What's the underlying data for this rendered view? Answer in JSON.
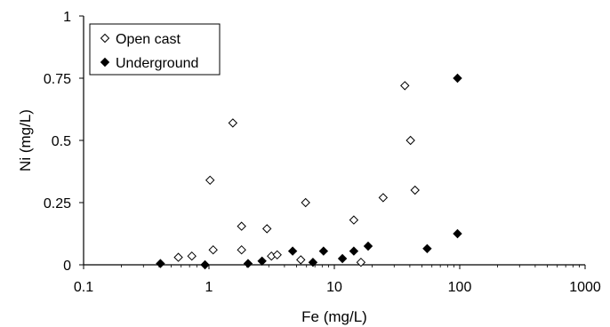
{
  "chart_data": {
    "type": "scatter",
    "title": "",
    "xlabel": "Fe (mg/L)",
    "ylabel": "Ni (mg/L)",
    "x_scale": "log",
    "xlim": [
      0.1,
      1000
    ],
    "ylim": [
      0,
      1
    ],
    "x_ticks": [
      0.1,
      1,
      10,
      100,
      1000
    ],
    "x_tick_labels": [
      "0.1",
      "1",
      "10",
      "100",
      "1000"
    ],
    "y_ticks": [
      0,
      0.25,
      0.5,
      0.75,
      1
    ],
    "y_tick_labels": [
      "0",
      "0.25",
      "0.5",
      "0.75",
      "1"
    ],
    "grid": false,
    "legend_position": "top-left",
    "series": [
      {
        "name": "Open cast",
        "marker": "open-diamond",
        "color": "#000000",
        "points": [
          {
            "x": 0.57,
            "y": 0.03
          },
          {
            "x": 0.73,
            "y": 0.035
          },
          {
            "x": 1.02,
            "y": 0.34
          },
          {
            "x": 1.08,
            "y": 0.06
          },
          {
            "x": 1.55,
            "y": 0.57
          },
          {
            "x": 1.82,
            "y": 0.155
          },
          {
            "x": 1.82,
            "y": 0.06
          },
          {
            "x": 2.9,
            "y": 0.145
          },
          {
            "x": 3.15,
            "y": 0.035
          },
          {
            "x": 3.5,
            "y": 0.04
          },
          {
            "x": 5.4,
            "y": 0.02
          },
          {
            "x": 5.9,
            "y": 0.25
          },
          {
            "x": 14.3,
            "y": 0.18
          },
          {
            "x": 16.3,
            "y": 0.01
          },
          {
            "x": 24.5,
            "y": 0.27
          },
          {
            "x": 36.5,
            "y": 0.72
          },
          {
            "x": 40.5,
            "y": 0.5
          },
          {
            "x": 44.0,
            "y": 0.3
          }
        ]
      },
      {
        "name": "Underground",
        "marker": "filled-diamond",
        "color": "#000000",
        "points": [
          {
            "x": 0.41,
            "y": 0.005
          },
          {
            "x": 0.93,
            "y": 0.0
          },
          {
            "x": 2.05,
            "y": 0.005
          },
          {
            "x": 2.65,
            "y": 0.015
          },
          {
            "x": 4.65,
            "y": 0.055
          },
          {
            "x": 6.75,
            "y": 0.01
          },
          {
            "x": 8.2,
            "y": 0.055
          },
          {
            "x": 11.6,
            "y": 0.025
          },
          {
            "x": 14.3,
            "y": 0.055
          },
          {
            "x": 18.6,
            "y": 0.075
          },
          {
            "x": 55.0,
            "y": 0.065
          },
          {
            "x": 96.0,
            "y": 0.75
          },
          {
            "x": 96.0,
            "y": 0.125
          }
        ]
      }
    ]
  }
}
